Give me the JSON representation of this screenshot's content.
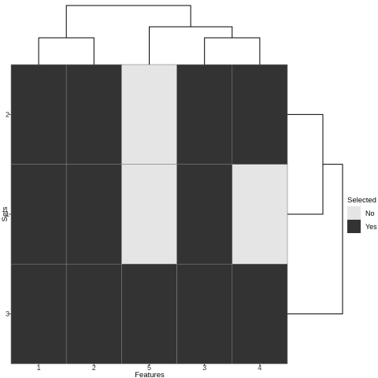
{
  "chart_data": {
    "type": "heatmap",
    "xlabel": "Features",
    "ylabel": "Sets",
    "x_categories": [
      "1",
      "2",
      "5",
      "3",
      "4"
    ],
    "y_categories_top_to_bottom": [
      "2",
      "1",
      "3"
    ],
    "values": [
      [
        "Yes",
        "Yes",
        "No",
        "Yes",
        "Yes"
      ],
      [
        "Yes",
        "Yes",
        "No",
        "Yes",
        "No"
      ],
      [
        "Yes",
        "Yes",
        "Yes",
        "Yes",
        "Yes"
      ]
    ],
    "legend": {
      "title": "Selected",
      "position": "right",
      "items": [
        {
          "label": "No",
          "color": "#e5e5e5"
        },
        {
          "label": "Yes",
          "color": "#333333"
        }
      ]
    },
    "column_dendrogram": {
      "merges": [
        [
          "3",
          "4"
        ],
        [
          "5",
          [
            "3",
            "4"
          ]
        ],
        [
          "1",
          "2"
        ],
        [
          [
            "1",
            "2"
          ],
          [
            "5",
            [
              "3",
              "4"
            ]
          ]
        ]
      ]
    },
    "row_dendrogram": {
      "merges": [
        [
          "2",
          "1"
        ],
        [
          [
            "2",
            "1"
          ],
          "3"
        ]
      ]
    },
    "colors": {
      "Yes": "#333333",
      "No": "#e5e5e5",
      "cell_border": "#7f7f7f",
      "dendrogram": "#000000"
    }
  }
}
